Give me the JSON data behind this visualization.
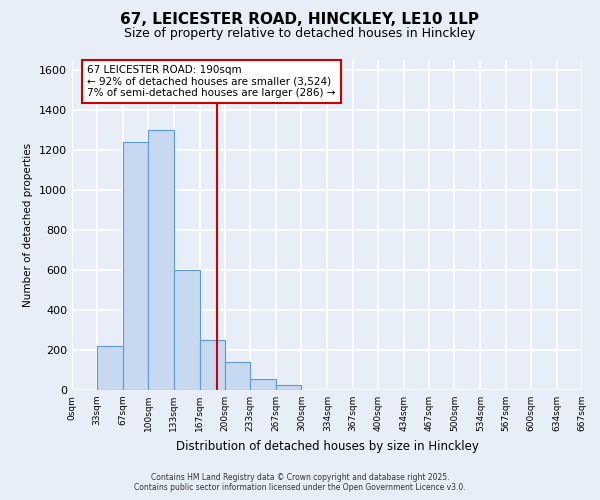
{
  "title": "67, LEICESTER ROAD, HINCKLEY, LE10 1LP",
  "subtitle": "Size of property relative to detached houses in Hinckley",
  "xlabel": "Distribution of detached houses by size in Hinckley",
  "ylabel": "Number of detached properties",
  "bar_edges": [
    0,
    33,
    67,
    100,
    133,
    167,
    200,
    233,
    267,
    300,
    334,
    367,
    400,
    434,
    467,
    500,
    534,
    567,
    600,
    634,
    667
  ],
  "bar_heights": [
    0,
    220,
    1240,
    1300,
    600,
    250,
    140,
    55,
    25,
    0,
    0,
    0,
    0,
    0,
    0,
    0,
    0,
    0,
    0,
    0
  ],
  "bar_color": "#c6d9f0",
  "bar_edge_color": "#5b9bd5",
  "vline_x": 190,
  "vline_color": "#cc0000",
  "ylim": [
    0,
    1650
  ],
  "yticks": [
    0,
    200,
    400,
    600,
    800,
    1000,
    1200,
    1400,
    1600
  ],
  "annotation_text_line1": "67 LEICESTER ROAD: 190sqm",
  "annotation_text_line2": "← 92% of detached houses are smaller (3,524)",
  "annotation_text_line3": "7% of semi-detached houses are larger (286) →",
  "background_color": "#e8eef8",
  "grid_color": "#ffffff",
  "footer_line1": "Contains HM Land Registry data © Crown copyright and database right 2025.",
  "footer_line2": "Contains public sector information licensed under the Open Government Licence v3.0.",
  "title_fontsize": 11,
  "subtitle_fontsize": 9,
  "tick_labels": [
    "0sqm",
    "33sqm",
    "67sqm",
    "100sqm",
    "133sqm",
    "167sqm",
    "200sqm",
    "233sqm",
    "267sqm",
    "300sqm",
    "334sqm",
    "367sqm",
    "400sqm",
    "434sqm",
    "467sqm",
    "500sqm",
    "534sqm",
    "567sqm",
    "600sqm",
    "634sqm",
    "667sqm"
  ]
}
